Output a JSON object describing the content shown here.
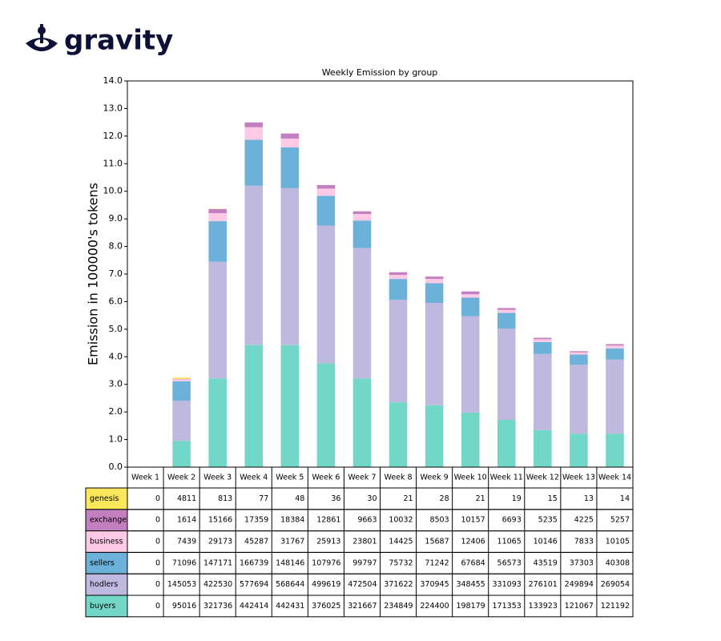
{
  "logo": "gravity",
  "chart_data": {
    "type": "bar",
    "stacked": true,
    "title": "Weekly Emission by group",
    "ylabel": "Emission in 100000's tokens",
    "categories": [
      "Week 1",
      "Week 2",
      "Week 3",
      "Week 4",
      "Week 5",
      "Week 6",
      "Week 7",
      "Week 8",
      "Week 9",
      "Week 10",
      "Week 11",
      "Week 12",
      "Week 13",
      "Week 14"
    ],
    "series": [
      {
        "name": "genesis",
        "color": "#fbe85a",
        "values": [
          0,
          4811,
          813,
          77,
          48,
          36,
          30,
          21,
          28,
          21,
          19,
          15,
          13,
          14
        ]
      },
      {
        "name": "exchange",
        "color": "#c47fc1",
        "values": [
          0,
          1614,
          15166,
          17359,
          18384,
          12861,
          9663,
          10032,
          8503,
          10157,
          6693,
          5235,
          4225,
          5257
        ]
      },
      {
        "name": "business",
        "color": "#fdc9e4",
        "values": [
          0,
          7439,
          29173,
          45287,
          31767,
          25913,
          23801,
          14425,
          15687,
          12406,
          11065,
          10146,
          7833,
          10105
        ]
      },
      {
        "name": "sellers",
        "color": "#6bb1d9",
        "values": [
          0,
          71096,
          147171,
          166739,
          148146,
          107976,
          99797,
          75732,
          71242,
          67684,
          56573,
          43519,
          37303,
          40308
        ]
      },
      {
        "name": "hodlers",
        "color": "#bfb9df",
        "values": [
          0,
          145053,
          422530,
          577694,
          568644,
          499619,
          472504,
          371622,
          370945,
          348455,
          331093,
          276101,
          249894,
          269054
        ]
      },
      {
        "name": "buyers",
        "color": "#72d7c6",
        "values": [
          0,
          95016,
          321736,
          442414,
          442431,
          376025,
          321667,
          234849,
          224400,
          198179,
          171353,
          133923,
          121067,
          121192
        ]
      }
    ],
    "ylim": [
      0,
      1400000
    ],
    "yticks": [
      {
        "value": 0,
        "label": "0.0"
      },
      {
        "value": 100000,
        "label": "1.0"
      },
      {
        "value": 200000,
        "label": "2.0"
      },
      {
        "value": 300000,
        "label": "3.0"
      },
      {
        "value": 400000,
        "label": "4.0"
      },
      {
        "value": 500000,
        "label": "5.0"
      },
      {
        "value": 600000,
        "label": "6.0"
      },
      {
        "value": 700000,
        "label": "7.0"
      },
      {
        "value": 800000,
        "label": "8.0"
      },
      {
        "value": 900000,
        "label": "9.0"
      },
      {
        "value": 1000000,
        "label": "10.0"
      },
      {
        "value": 1100000,
        "label": "11.0"
      },
      {
        "value": 1200000,
        "label": "12.0"
      },
      {
        "value": 1300000,
        "label": "13.0"
      },
      {
        "value": 1400000,
        "label": "14.0"
      }
    ]
  }
}
